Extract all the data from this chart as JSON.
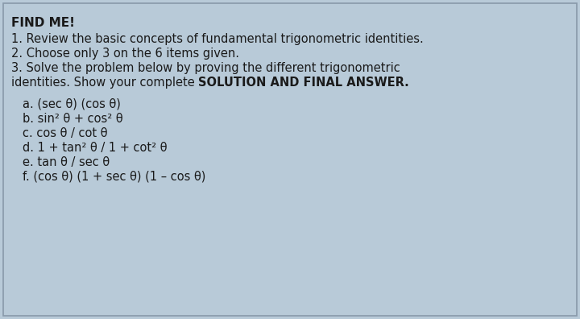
{
  "bg_color": "#b8cad8",
  "border_color": "#8899aa",
  "text_color": "#1a1a1a",
  "title": "FIND ME!",
  "line1": "1. Review the basic concepts of fundamental trigonometric identities.",
  "line2": "2. Choose only 3 on the 6 items given.",
  "line3": "3. Solve the problem below by proving the different trigonometric",
  "line4_normal": "identities. Show your complete ",
  "line4_bold": "SOLUTION AND FINAL ANSWER.",
  "items": [
    "a. (sec θ) (cos θ)",
    "b. sin² θ + cos² θ",
    "c. cos θ / cot θ",
    "d. 1 + tan² θ / 1 + cot² θ",
    "e. tan θ / sec θ",
    "f. (cos θ) (1 + sec θ) (1 – cos θ)"
  ],
  "figsize": [
    7.2,
    3.96
  ],
  "dpi": 100,
  "fontsize": 10.5,
  "title_fontsize": 11.0
}
